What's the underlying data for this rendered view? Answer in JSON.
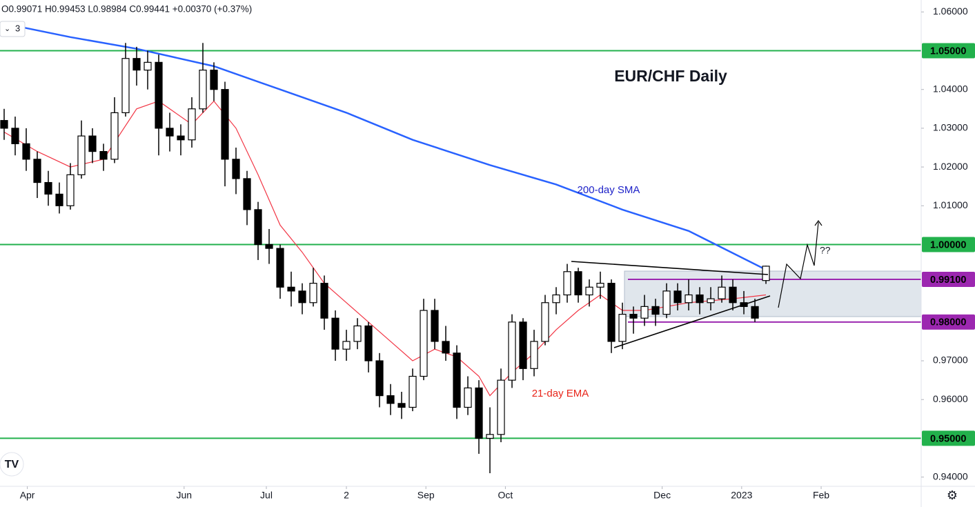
{
  "chart_data": {
    "type": "candlestick",
    "title": "EUR/CHF Daily",
    "ohlc_header": "O0.99071 H0.99453 L0.98984 C0.99441 +0.00370 (+0.37%)",
    "indicator_count": "3",
    "question_label": "??",
    "up_color": "#ffffff",
    "down_color": "#000000",
    "candles": [
      [
        1.032,
        1.035,
        1.027,
        1.03
      ],
      [
        1.03,
        1.033,
        1.023,
        1.026
      ],
      [
        1.026,
        1.03,
        1.019,
        1.022
      ],
      [
        1.022,
        1.024,
        1.012,
        1.016
      ],
      [
        1.016,
        1.019,
        1.01,
        1.013
      ],
      [
        1.013,
        1.016,
        1.008,
        1.01
      ],
      [
        1.01,
        1.021,
        1.009,
        1.018
      ],
      [
        1.018,
        1.032,
        1.017,
        1.028
      ],
      [
        1.028,
        1.03,
        1.021,
        1.024
      ],
      [
        1.024,
        1.026,
        1.019,
        1.022
      ],
      [
        1.022,
        1.038,
        1.021,
        1.034
      ],
      [
        1.034,
        1.052,
        1.033,
        1.048
      ],
      [
        1.048,
        1.051,
        1.041,
        1.045
      ],
      [
        1.045,
        1.05,
        1.04,
        1.047
      ],
      [
        1.047,
        1.049,
        1.023,
        1.03
      ],
      [
        1.03,
        1.034,
        1.024,
        1.028
      ],
      [
        1.028,
        1.031,
        1.023,
        1.027
      ],
      [
        1.027,
        1.038,
        1.025,
        1.035
      ],
      [
        1.035,
        1.052,
        1.034,
        1.045
      ],
      [
        1.045,
        1.047,
        1.037,
        1.04
      ],
      [
        1.04,
        1.042,
        1.015,
        1.022
      ],
      [
        1.022,
        1.025,
        1.013,
        1.017
      ],
      [
        1.017,
        1.019,
        1.005,
        1.009
      ],
      [
        1.009,
        1.011,
        0.996,
        1.0
      ],
      [
        1.0,
        1.004,
        0.995,
        0.999
      ],
      [
        0.999,
        1.0,
        0.986,
        0.989
      ],
      [
        0.989,
        0.993,
        0.984,
        0.988
      ],
      [
        0.988,
        0.99,
        0.982,
        0.985
      ],
      [
        0.985,
        0.994,
        0.984,
        0.99
      ],
      [
        0.99,
        0.992,
        0.978,
        0.981
      ],
      [
        0.981,
        0.983,
        0.97,
        0.973
      ],
      [
        0.973,
        0.978,
        0.97,
        0.975
      ],
      [
        0.975,
        0.981,
        0.973,
        0.979
      ],
      [
        0.979,
        0.98,
        0.967,
        0.97
      ],
      [
        0.97,
        0.972,
        0.958,
        0.961
      ],
      [
        0.961,
        0.964,
        0.956,
        0.959
      ],
      [
        0.959,
        0.962,
        0.955,
        0.958
      ],
      [
        0.958,
        0.968,
        0.957,
        0.966
      ],
      [
        0.966,
        0.986,
        0.965,
        0.983
      ],
      [
        0.983,
        0.986,
        0.973,
        0.975
      ],
      [
        0.975,
        0.979,
        0.97,
        0.972
      ],
      [
        0.972,
        0.974,
        0.955,
        0.958
      ],
      [
        0.958,
        0.966,
        0.956,
        0.963
      ],
      [
        0.963,
        0.965,
        0.946,
        0.95
      ],
      [
        0.95,
        0.958,
        0.941,
        0.951
      ],
      [
        0.951,
        0.968,
        0.949,
        0.965
      ],
      [
        0.965,
        0.982,
        0.963,
        0.98
      ],
      [
        0.98,
        0.981,
        0.965,
        0.968
      ],
      [
        0.968,
        0.978,
        0.966,
        0.975
      ],
      [
        0.975,
        0.987,
        0.974,
        0.985
      ],
      [
        0.985,
        0.989,
        0.982,
        0.987
      ],
      [
        0.987,
        0.995,
        0.985,
        0.993
      ],
      [
        0.993,
        0.994,
        0.985,
        0.987
      ],
      [
        0.987,
        0.991,
        0.984,
        0.989
      ],
      [
        0.989,
        0.993,
        0.986,
        0.99
      ],
      [
        0.99,
        0.991,
        0.972,
        0.975
      ],
      [
        0.975,
        0.985,
        0.973,
        0.982
      ],
      [
        0.982,
        0.984,
        0.977,
        0.981
      ],
      [
        0.981,
        0.987,
        0.979,
        0.984
      ],
      [
        0.984,
        0.986,
        0.979,
        0.982
      ],
      [
        0.982,
        0.99,
        0.981,
        0.988
      ],
      [
        0.988,
        0.99,
        0.983,
        0.985
      ],
      [
        0.985,
        0.991,
        0.983,
        0.987
      ],
      [
        0.987,
        0.989,
        0.982,
        0.985
      ],
      [
        0.985,
        0.989,
        0.983,
        0.986
      ],
      [
        0.986,
        0.992,
        0.985,
        0.989
      ],
      [
        0.989,
        0.991,
        0.983,
        0.985
      ],
      [
        0.985,
        0.988,
        0.982,
        0.984
      ],
      [
        0.984,
        0.986,
        0.98,
        0.981
      ],
      [
        0.99071,
        0.99453,
        0.98984,
        0.99441
      ]
    ],
    "series": [
      {
        "name": "200-day SMA",
        "color": "#2962ff",
        "width": 2.5,
        "x": [
          0,
          6,
          12,
          19,
          25,
          31,
          37,
          44,
          50,
          56,
          62,
          69
        ],
        "values": [
          1.057,
          1.0535,
          1.0505,
          1.046,
          1.04,
          1.034,
          1.027,
          1.0205,
          1.0155,
          1.009,
          1.0035,
          0.9935
        ]
      },
      {
        "name": "21-day EMA",
        "color": "#f23645",
        "width": 1.2,
        "x": [
          0,
          3,
          6,
          9,
          12,
          14,
          17,
          19,
          21,
          23,
          25,
          27,
          29,
          31,
          33,
          35,
          37,
          39,
          41,
          43,
          44,
          46,
          48,
          50,
          52,
          54,
          56,
          58,
          62,
          66,
          69
        ],
        "values": [
          1.029,
          1.024,
          1.02,
          1.022,
          1.035,
          1.037,
          1.031,
          1.037,
          1.03,
          1.018,
          1.005,
          0.998,
          0.99,
          0.985,
          0.98,
          0.975,
          0.97,
          0.973,
          0.971,
          0.966,
          0.961,
          0.967,
          0.972,
          0.978,
          0.983,
          0.987,
          0.983,
          0.983,
          0.985,
          0.986,
          0.987
        ]
      }
    ],
    "levels": [
      {
        "value": 1.05,
        "label": "1.05000",
        "color": "#22b14c"
      },
      {
        "value": 1.0,
        "label": "1.00000",
        "color": "#22b14c"
      },
      {
        "value": 0.95,
        "label": "0.95000",
        "color": "#22b14c"
      },
      {
        "value": 0.991,
        "label": "0.99100",
        "color": "#9c27b0"
      },
      {
        "value": 0.98,
        "label": "0.98000",
        "color": "#9c27b0"
      }
    ],
    "ylim": [
      0.93762,
      1.06308
    ],
    "yticks": [
      {
        "value": 0.94,
        "label": "0.94000"
      },
      {
        "value": 0.96,
        "label": "0.96000"
      },
      {
        "value": 0.97,
        "label": "0.97000"
      },
      {
        "value": 1.01,
        "label": "1.01000"
      },
      {
        "value": 1.02,
        "label": "1.02000"
      },
      {
        "value": 1.03,
        "label": "1.03000"
      },
      {
        "value": 1.04,
        "label": "1.04000"
      },
      {
        "value": 1.06,
        "label": "1.06000"
      }
    ],
    "xlim": [
      -0.375,
      83.06
    ],
    "xticks": [
      {
        "value": 2.1,
        "label": "Apr"
      },
      {
        "value": 16.3,
        "label": "Jun"
      },
      {
        "value": 23.75,
        "label": "Jul"
      },
      {
        "value": 31,
        "label": "2"
      },
      {
        "value": 38.2,
        "label": "Sep"
      },
      {
        "value": 45.4,
        "label": "Oct"
      },
      {
        "value": 59.6,
        "label": "Dec"
      },
      {
        "value": 66.8,
        "label": "2023"
      },
      {
        "value": 74,
        "label": "Feb"
      }
    ]
  }
}
